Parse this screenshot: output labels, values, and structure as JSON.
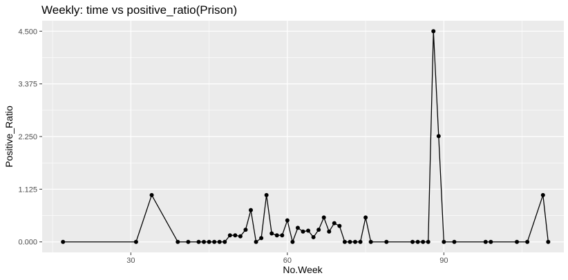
{
  "chart_data": {
    "type": "line",
    "title": "Weekly: time vs positive_ratio(Prison)",
    "xlabel": "No.Week",
    "ylabel": "Positive_Ratio",
    "xlim": [
      13,
      113
    ],
    "ylim": [
      -0.225,
      4.725
    ],
    "xticks": [
      30,
      60,
      90
    ],
    "xtick_labels": [
      "30",
      "60",
      "90"
    ],
    "yticks": [
      0,
      1.125,
      2.25,
      3.375,
      4.5
    ],
    "ytick_labels": [
      "0.000",
      "1.125",
      "2.250",
      "3.375",
      "4.500"
    ],
    "grid": true,
    "colors": {
      "panel": "#ebebeb",
      "grid": "#ffffff",
      "line": "#000000",
      "point": "#000000"
    },
    "series": [
      {
        "x": [
          17,
          31,
          34,
          39,
          41,
          43,
          44,
          45,
          46,
          47,
          48,
          49,
          50,
          51,
          52,
          53,
          54,
          55,
          56,
          57,
          58,
          59,
          60,
          61,
          62,
          63,
          64,
          65,
          66,
          67,
          68,
          69,
          70,
          71,
          72,
          73,
          74,
          75,
          76,
          79,
          84,
          85,
          86,
          87,
          88,
          89,
          90,
          92,
          98,
          99,
          104,
          106,
          109,
          110
        ],
        "y": [
          0,
          0,
          1.0,
          0,
          0,
          0,
          0,
          0,
          0,
          0,
          0,
          0.14,
          0.14,
          0.12,
          0.26,
          0.68,
          0,
          0.08,
          1.0,
          0.18,
          0.14,
          0.14,
          0.46,
          0,
          0.3,
          0.22,
          0.24,
          0.1,
          0.26,
          0.52,
          0.22,
          0.4,
          0.34,
          0,
          0,
          0,
          0,
          0.52,
          0,
          0,
          0,
          0,
          0,
          0,
          4.5,
          2.26,
          0,
          0,
          0,
          0,
          0,
          0,
          1.0,
          0
        ]
      }
    ]
  }
}
